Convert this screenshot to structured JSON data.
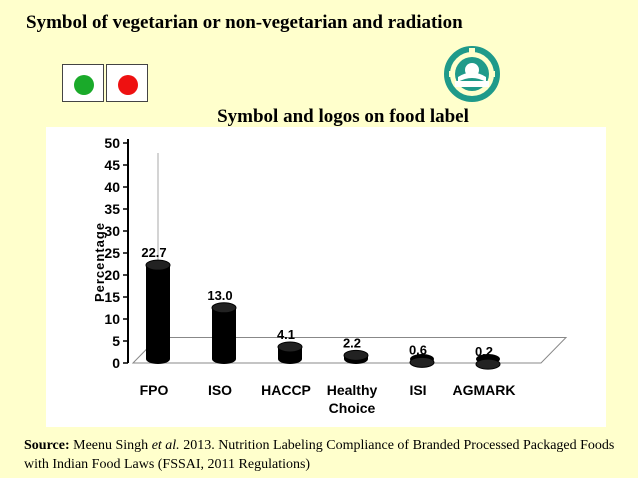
{
  "slide": {
    "title": "Symbol of vegetarian or non-vegetarian and radiation"
  },
  "symbols": {
    "veg_color": "#1aaa2a",
    "nonveg_color": "#ee1111",
    "radiation_logo_icon": "radura-icon",
    "radiation_logo_color": "#1f9a8a"
  },
  "source": {
    "label": "Source:",
    "author": "Meenu Singh",
    "etal": "et al.",
    "text": "2013. Nutrition Labeling Compliance of Branded Processed Packaged Foods with Indian Food Laws (FSSAI, 2011 Regulations)"
  },
  "chart_data": {
    "type": "bar",
    "title": "Symbol and logos on food label",
    "ylabel": "Percentage",
    "xlabel": "",
    "categories": [
      "FPO",
      "ISO",
      "HACCP",
      "Healthy Choice",
      "ISI",
      "AGMARK"
    ],
    "values": [
      22.7,
      13.0,
      4.1,
      2.2,
      0.6,
      0.2
    ],
    "value_labels": [
      "22.7",
      "13.0",
      "4.1",
      "2.2",
      "0.6",
      "0.2"
    ],
    "yticks": [
      "0",
      "5",
      "10",
      "15",
      "20",
      "25",
      "30",
      "35",
      "40",
      "45",
      "50"
    ],
    "ylim": [
      0,
      50
    ],
    "grid": false,
    "bar_color": "#000000"
  }
}
